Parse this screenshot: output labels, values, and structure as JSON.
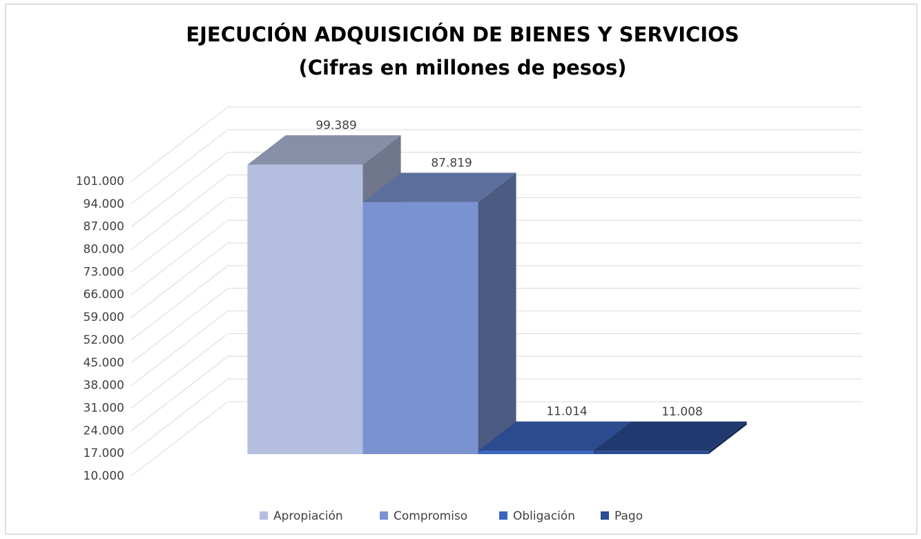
{
  "chart_data": {
    "type": "bar3d",
    "title": "EJECUCIÓN ADQUISICIÓN DE BIENES  Y SERVICIOS",
    "subtitle": "(Cifras en millones de pesos)",
    "series": [
      {
        "name": "Apropiación",
        "color": "#b4bfe0",
        "values": [
          99389
        ],
        "value_labels": [
          "99.389"
        ]
      },
      {
        "name": "Compromiso",
        "color": "#7a93d0",
        "values": [
          87819
        ],
        "value_labels": [
          "87.819"
        ]
      },
      {
        "name": "Obligación",
        "color": "#3a64be",
        "values": [
          11014
        ],
        "value_labels": [
          "11.014"
        ]
      },
      {
        "name": "Pago",
        "color": "#2a4c94",
        "values": [
          11008
        ],
        "value_labels": [
          "11.008"
        ]
      }
    ],
    "ylim": [
      10000,
      101000
    ],
    "yticks": [
      {
        "value": 10000,
        "label": "10.000"
      },
      {
        "value": 17000,
        "label": "17.000"
      },
      {
        "value": 24000,
        "label": "24.000"
      },
      {
        "value": 31000,
        "label": "31.000"
      },
      {
        "value": 38000,
        "label": "38.000"
      },
      {
        "value": 45000,
        "label": "45.000"
      },
      {
        "value": 52000,
        "label": "52.000"
      },
      {
        "value": 59000,
        "label": "59.000"
      },
      {
        "value": 66000,
        "label": "66.000"
      },
      {
        "value": 73000,
        "label": "73.000"
      },
      {
        "value": 80000,
        "label": "80.000"
      },
      {
        "value": 87000,
        "label": "87.000"
      },
      {
        "value": 94000,
        "label": "94.000"
      },
      {
        "value": 101000,
        "label": "101.000"
      }
    ],
    "grid": true,
    "legend": "bottom"
  }
}
